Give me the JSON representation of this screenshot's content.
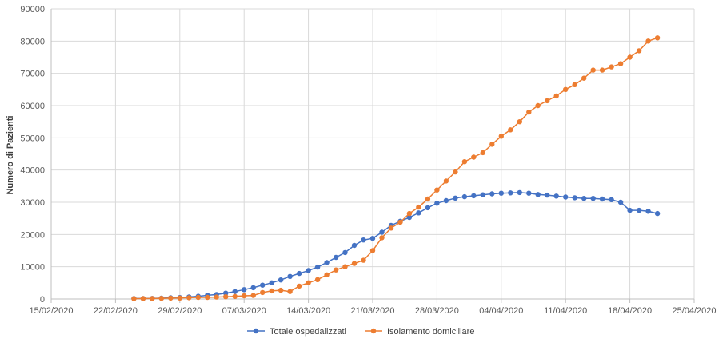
{
  "chart_data": {
    "type": "line",
    "title": "",
    "xlabel": "",
    "ylabel": "Numero di Pazienti",
    "ylim": [
      0,
      90000
    ],
    "yticks": [
      0,
      10000,
      20000,
      30000,
      40000,
      50000,
      60000,
      70000,
      80000,
      90000
    ],
    "xlim": [
      "15/02/2020",
      "25/04/2020"
    ],
    "xticks": [
      "15/02/2020",
      "22/02/2020",
      "29/02/2020",
      "07/03/2020",
      "14/03/2020",
      "21/03/2020",
      "28/03/2020",
      "04/04/2020",
      "11/04/2020",
      "18/04/2020",
      "25/04/2020"
    ],
    "grid": "vertical and horizontal",
    "legend_position": "bottom",
    "x": [
      "24/02/2020",
      "25/02/2020",
      "26/02/2020",
      "27/02/2020",
      "28/02/2020",
      "29/02/2020",
      "01/03/2020",
      "02/03/2020",
      "03/03/2020",
      "04/03/2020",
      "05/03/2020",
      "06/03/2020",
      "07/03/2020",
      "08/03/2020",
      "09/03/2020",
      "10/03/2020",
      "11/03/2020",
      "12/03/2020",
      "13/03/2020",
      "14/03/2020",
      "15/03/2020",
      "16/03/2020",
      "17/03/2020",
      "18/03/2020",
      "19/03/2020",
      "20/03/2020",
      "21/03/2020",
      "22/03/2020",
      "23/03/2020",
      "24/03/2020",
      "25/03/2020",
      "26/03/2020",
      "27/03/2020",
      "28/03/2020",
      "29/03/2020",
      "30/03/2020",
      "31/03/2020",
      "01/04/2020",
      "02/04/2020",
      "03/04/2020",
      "04/04/2020",
      "05/04/2020",
      "06/04/2020",
      "07/04/2020",
      "08/04/2020",
      "09/04/2020",
      "10/04/2020",
      "11/04/2020",
      "12/04/2020",
      "13/04/2020",
      "14/04/2020",
      "15/04/2020",
      "16/04/2020",
      "17/04/2020",
      "18/04/2020",
      "19/04/2020",
      "20/04/2020",
      "21/04/2020"
    ],
    "series": [
      {
        "name": "Totale ospedalizzati",
        "color": "#4472C4",
        "values": [
          150,
          160,
          180,
          250,
          380,
          450,
          650,
          850,
          1150,
          1400,
          1800,
          2300,
          2900,
          3500,
          4300,
          5000,
          5900,
          7000,
          7900,
          8800,
          9900,
          11300,
          12900,
          14400,
          16600,
          18300,
          18800,
          20700,
          22800,
          24100,
          25300,
          26700,
          28300,
          29700,
          30500,
          31300,
          31700,
          32000,
          32300,
          32600,
          32800,
          32900,
          33000,
          32800,
          32400,
          32200,
          31900,
          31600,
          31400,
          31200,
          31200,
          31000,
          30800,
          30000,
          27500,
          27500,
          27200,
          26500
        ]
      },
      {
        "name": "Isolamento domiciliare",
        "color": "#ED7D31",
        "values": [
          100,
          120,
          150,
          200,
          280,
          300,
          400,
          500,
          500,
          600,
          700,
          800,
          1000,
          1100,
          2000,
          2500,
          2700,
          2300,
          4000,
          5000,
          6000,
          7500,
          9000,
          10000,
          11000,
          12000,
          15000,
          19000,
          22000,
          23800,
          26500,
          28500,
          31000,
          33800,
          36600,
          39400,
          42600,
          44000,
          45400,
          48000,
          50500,
          52500,
          55000,
          58000,
          60000,
          61500,
          63000,
          65000,
          66500,
          68500,
          71000,
          71000,
          72000,
          73000,
          75000,
          77000,
          80000,
          81000
        ]
      }
    ]
  }
}
